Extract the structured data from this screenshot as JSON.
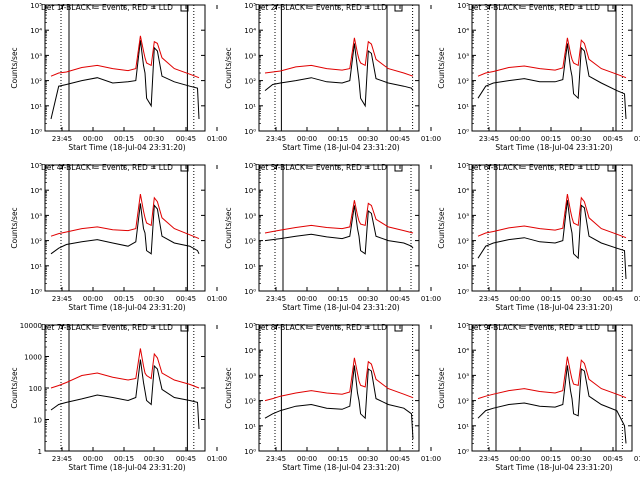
{
  "figure": {
    "background": "#ffffff",
    "event_color": "#000000",
    "lld_color": "#e00000",
    "xlabel": "Start Time (18-Jul-04 23:31:20)",
    "ylabel": "Counts/sec"
  },
  "chart_data": [
    {
      "type": "line",
      "title": "Det 1f-BLACK = Events, RED = LLD",
      "scale": "log",
      "ylim": [
        1,
        100000
      ],
      "yticks": [
        "10⁰",
        "10¹",
        "10²",
        "10³",
        "10⁴",
        "10⁵"
      ],
      "xticks": [
        "23:45",
        "00:00",
        "00:15",
        "00:30",
        "00:45",
        "01:00"
      ],
      "xlabel": "Start Time (18-Jul-04 23:31:20)",
      "ylabel": "Counts/sec",
      "series": [
        {
          "name": "Events",
          "x": [
            0,
            5,
            10,
            20,
            30,
            40,
            50,
            55,
            58,
            60,
            61,
            62,
            65,
            67,
            69,
            72,
            80,
            90,
            95,
            96
          ],
          "y": [
            3,
            60,
            70,
            100,
            130,
            80,
            90,
            100,
            4000,
            400,
            200,
            20,
            10,
            2000,
            1500,
            150,
            90,
            60,
            50,
            3
          ]
        },
        {
          "name": "LLD",
          "x": [
            0,
            5,
            10,
            20,
            30,
            40,
            50,
            55,
            58,
            60,
            61,
            62,
            65,
            67,
            69,
            72,
            80,
            90,
            96
          ],
          "y": [
            150,
            200,
            220,
            330,
            400,
            300,
            250,
            300,
            6000,
            1500,
            800,
            500,
            400,
            3500,
            3000,
            800,
            300,
            180,
            130
          ]
        }
      ],
      "markers": {
        "dotted": [
          10,
          93
        ],
        "solid": [
          15,
          89
        ]
      }
    },
    {
      "type": "line",
      "title": "Det 2f-BLACK = Events, RED = LLD",
      "scale": "log",
      "ylim": [
        1,
        100000
      ],
      "yticks": [
        "10⁰",
        "10¹",
        "10²",
        "10³",
        "10⁴",
        "10⁵"
      ],
      "xticks": [
        "23:45",
        "00:00",
        "00:15",
        "00:30",
        "00:45",
        "01:00"
      ],
      "xlabel": "Start Time (18-Jul-04 23:31:20)",
      "ylabel": "Counts/sec",
      "series": [
        {
          "name": "Events",
          "x": [
            0,
            5,
            10,
            20,
            30,
            40,
            50,
            55,
            58,
            60,
            61,
            62,
            65,
            67,
            69,
            72,
            80,
            90,
            95,
            96
          ],
          "y": [
            40,
            70,
            80,
            100,
            130,
            90,
            80,
            100,
            3000,
            300,
            100,
            20,
            10,
            1500,
            1200,
            120,
            80,
            60,
            50,
            40
          ]
        },
        {
          "name": "LLD",
          "x": [
            0,
            5,
            10,
            20,
            30,
            40,
            50,
            55,
            58,
            60,
            61,
            62,
            65,
            67,
            69,
            72,
            80,
            90,
            96
          ],
          "y": [
            200,
            220,
            240,
            350,
            400,
            300,
            260,
            300,
            5000,
            1200,
            700,
            500,
            400,
            3500,
            2800,
            700,
            300,
            200,
            150
          ]
        }
      ],
      "markers": {
        "dotted": [
          10,
          96
        ],
        "solid": [
          14,
          80
        ]
      }
    },
    {
      "type": "line",
      "title": "Det 3f-BLACK = Events, RED = LLD",
      "scale": "log",
      "ylim": [
        1,
        100000
      ],
      "yticks": [
        "10⁰",
        "10¹",
        "10²",
        "10³",
        "10⁴",
        "10⁵"
      ],
      "xticks": [
        "23:45",
        "00:00",
        "00:15",
        "00:30",
        "00:45",
        "01:00"
      ],
      "xlabel": "Start Time (18-Jul-04 23:31:20)",
      "ylabel": "Counts/sec",
      "series": [
        {
          "name": "Events",
          "x": [
            0,
            5,
            10,
            20,
            30,
            40,
            50,
            55,
            58,
            60,
            61,
            62,
            65,
            67,
            69,
            72,
            80,
            90,
            95,
            96
          ],
          "y": [
            20,
            60,
            80,
            100,
            120,
            90,
            90,
            110,
            3000,
            300,
            150,
            30,
            20,
            2000,
            1500,
            150,
            80,
            40,
            30,
            3
          ]
        },
        {
          "name": "LLD",
          "x": [
            0,
            5,
            10,
            20,
            30,
            40,
            50,
            55,
            58,
            60,
            61,
            62,
            65,
            67,
            69,
            72,
            80,
            90,
            96
          ],
          "y": [
            150,
            200,
            230,
            330,
            380,
            300,
            260,
            320,
            5000,
            1200,
            700,
            500,
            400,
            4000,
            3000,
            700,
            300,
            180,
            130
          ]
        }
      ],
      "markers": {
        "dotted": [
          10,
          94
        ],
        "solid": [
          15,
          90
        ]
      }
    },
    {
      "type": "line",
      "title": "Det 4f-BLACK = Events, RED = LLD",
      "scale": "log",
      "ylim": [
        1,
        100000
      ],
      "yticks": [
        "10⁰",
        "10¹",
        "10²",
        "10³",
        "10⁴",
        "10⁵"
      ],
      "xticks": [
        "23:45",
        "00:00",
        "00:15",
        "00:30",
        "00:45",
        "01:00"
      ],
      "xlabel": "Start Time (18-Jul-04 23:31:20)",
      "ylabel": "Counts/sec",
      "series": [
        {
          "name": "Events",
          "x": [
            0,
            5,
            10,
            20,
            30,
            40,
            50,
            55,
            58,
            60,
            61,
            62,
            65,
            67,
            69,
            72,
            80,
            90,
            95,
            96
          ],
          "y": [
            30,
            50,
            70,
            90,
            110,
            80,
            60,
            90,
            3000,
            300,
            200,
            40,
            30,
            2500,
            1800,
            150,
            80,
            60,
            40,
            30
          ]
        },
        {
          "name": "LLD",
          "x": [
            0,
            5,
            10,
            20,
            30,
            40,
            50,
            55,
            58,
            60,
            61,
            62,
            65,
            67,
            69,
            72,
            80,
            90,
            96
          ],
          "y": [
            150,
            190,
            220,
            300,
            350,
            270,
            250,
            300,
            7000,
            1500,
            800,
            500,
            400,
            5000,
            3500,
            800,
            300,
            170,
            120
          ]
        }
      ],
      "markers": {
        "dotted": [
          10,
          93
        ],
        "solid": [
          15,
          89
        ]
      }
    },
    {
      "type": "line",
      "title": "Det 5f-BLACK = Events, RED = LLD",
      "scale": "log",
      "ylim": [
        1,
        100000
      ],
      "yticks": [
        "10⁰",
        "10¹",
        "10²",
        "10³",
        "10⁴",
        "10⁵"
      ],
      "xticks": [
        "23:45",
        "00:00",
        "00:15",
        "00:30",
        "00:45",
        "01:00"
      ],
      "xlabel": "Start Time (18-Jul-04 23:31:20)",
      "ylabel": "Counts/sec",
      "series": [
        {
          "name": "Events",
          "x": [
            0,
            5,
            10,
            20,
            30,
            40,
            50,
            55,
            58,
            60,
            61,
            62,
            65,
            67,
            69,
            72,
            80,
            90,
            95,
            96
          ],
          "y": [
            100,
            110,
            120,
            150,
            180,
            140,
            120,
            150,
            2500,
            300,
            150,
            40,
            30,
            1500,
            1200,
            150,
            100,
            80,
            60,
            50
          ]
        },
        {
          "name": "LLD",
          "x": [
            0,
            5,
            10,
            20,
            30,
            40,
            50,
            55,
            58,
            60,
            61,
            62,
            65,
            67,
            69,
            72,
            80,
            90,
            96
          ],
          "y": [
            200,
            230,
            260,
            330,
            400,
            330,
            300,
            350,
            4000,
            1000,
            600,
            450,
            400,
            3000,
            2500,
            700,
            350,
            250,
            200
          ]
        }
      ],
      "markers": {
        "dotted": [
          10,
          95
        ],
        "solid": [
          15,
          80
        ]
      }
    },
    {
      "type": "line",
      "title": "Det 6f-BLACK = Events, RED = LLD",
      "scale": "log",
      "ylim": [
        1,
        100000
      ],
      "yticks": [
        "10⁰",
        "10¹",
        "10²",
        "10³",
        "10⁴",
        "10⁵"
      ],
      "xticks": [
        "23:45",
        "00:00",
        "00:15",
        "00:30",
        "00:45",
        "01:00"
      ],
      "xlabel": "Start Time (18-Jul-04 23:31:20)",
      "ylabel": "Counts/sec",
      "series": [
        {
          "name": "Events",
          "x": [
            0,
            5,
            10,
            20,
            30,
            40,
            50,
            55,
            58,
            60,
            61,
            62,
            65,
            67,
            69,
            72,
            80,
            90,
            95,
            96
          ],
          "y": [
            20,
            60,
            80,
            110,
            130,
            90,
            80,
            100,
            4000,
            400,
            200,
            30,
            20,
            2500,
            2000,
            150,
            80,
            50,
            40,
            3
          ]
        },
        {
          "name": "LLD",
          "x": [
            0,
            5,
            10,
            20,
            30,
            40,
            50,
            55,
            58,
            60,
            61,
            62,
            65,
            67,
            69,
            72,
            80,
            90,
            96
          ],
          "y": [
            150,
            200,
            230,
            320,
            380,
            300,
            260,
            310,
            7000,
            1500,
            800,
            500,
            400,
            5000,
            3500,
            800,
            300,
            180,
            130
          ]
        }
      ],
      "markers": {
        "dotted": [
          10,
          94
        ],
        "solid": [
          15,
          90
        ]
      }
    },
    {
      "type": "line",
      "title": "Det 7f-BLACK = Events, RED = LLD",
      "scale": "log",
      "ylim": [
        1,
        10000
      ],
      "yticks": [
        "1",
        "10",
        "100",
        "1000",
        "10000"
      ],
      "xticks": [
        "23:45",
        "00:00",
        "00:15",
        "00:30",
        "00:45",
        "01:00"
      ],
      "xlabel": "Start Time (18-Jul-04 23:31:20)",
      "ylabel": "Counts/sec",
      "series": [
        {
          "name": "Events",
          "x": [
            0,
            5,
            10,
            20,
            30,
            40,
            50,
            55,
            58,
            60,
            61,
            62,
            65,
            67,
            69,
            72,
            80,
            90,
            95,
            96
          ],
          "y": [
            20,
            30,
            35,
            45,
            60,
            50,
            40,
            50,
            800,
            150,
            80,
            40,
            30,
            500,
            400,
            90,
            50,
            40,
            35,
            5
          ]
        },
        {
          "name": "LLD",
          "x": [
            0,
            5,
            10,
            20,
            30,
            40,
            50,
            55,
            58,
            60,
            61,
            62,
            65,
            67,
            69,
            72,
            80,
            90,
            96
          ],
          "y": [
            100,
            120,
            150,
            250,
            300,
            220,
            180,
            200,
            1800,
            500,
            300,
            250,
            200,
            1200,
            900,
            300,
            180,
            130,
            100
          ]
        }
      ],
      "markers": {
        "dotted": [
          10,
          93
        ],
        "solid": [
          15,
          89
        ]
      }
    },
    {
      "type": "line",
      "title": "Det 8f-BLACK = Events, RED = LLD",
      "scale": "log",
      "ylim": [
        1,
        100000
      ],
      "yticks": [
        "10⁰",
        "10¹",
        "10²",
        "10³",
        "10⁴",
        "10⁵"
      ],
      "xticks": [
        "23:45",
        "00:00",
        "00:15",
        "00:30",
        "00:45",
        "01:00"
      ],
      "xlabel": "Start Time (18-Jul-04 23:31:20)",
      "ylabel": "Counts/sec",
      "series": [
        {
          "name": "Events",
          "x": [
            0,
            5,
            10,
            20,
            30,
            40,
            50,
            55,
            58,
            60,
            61,
            62,
            65,
            67,
            69,
            72,
            80,
            90,
            95,
            96
          ],
          "y": [
            20,
            30,
            40,
            60,
            70,
            50,
            45,
            60,
            2500,
            200,
            100,
            30,
            20,
            1800,
            1500,
            120,
            70,
            50,
            30,
            3
          ]
        },
        {
          "name": "LLD",
          "x": [
            0,
            5,
            10,
            20,
            30,
            40,
            50,
            55,
            58,
            60,
            61,
            62,
            65,
            67,
            69,
            72,
            80,
            90,
            96
          ],
          "y": [
            100,
            120,
            150,
            200,
            250,
            200,
            180,
            220,
            5000,
            1200,
            600,
            400,
            350,
            3500,
            2800,
            700,
            300,
            180,
            130
          ]
        }
      ],
      "markers": {
        "dotted": [
          10,
          96
        ],
        "solid": [
          14,
          80
        ]
      }
    },
    {
      "type": "line",
      "title": "Det 9f-BLACK = Events, RED = LLD",
      "scale": "log",
      "ylim": [
        1,
        100000
      ],
      "yticks": [
        "10⁰",
        "10¹",
        "10²",
        "10³",
        "10⁴",
        "10⁵"
      ],
      "xticks": [
        "23:45",
        "00:00",
        "00:15",
        "00:30",
        "00:45",
        "01:00"
      ],
      "xlabel": "Start Time (18-Jul-04 23:31:20)",
      "ylabel": "Counts/sec",
      "series": [
        {
          "name": "Events",
          "x": [
            0,
            5,
            10,
            20,
            30,
            40,
            50,
            55,
            58,
            60,
            61,
            62,
            65,
            67,
            69,
            72,
            80,
            90,
            95,
            96
          ],
          "y": [
            20,
            40,
            50,
            70,
            80,
            60,
            55,
            70,
            2500,
            250,
            120,
            30,
            25,
            1800,
            1500,
            150,
            70,
            40,
            10,
            2
          ]
        },
        {
          "name": "LLD",
          "x": [
            0,
            5,
            10,
            20,
            30,
            40,
            50,
            55,
            58,
            60,
            61,
            62,
            65,
            67,
            69,
            72,
            80,
            90,
            96
          ],
          "y": [
            120,
            150,
            180,
            250,
            300,
            230,
            200,
            250,
            5500,
            1300,
            700,
            450,
            400,
            4000,
            3000,
            700,
            300,
            180,
            130
          ]
        }
      ],
      "markers": {
        "dotted": [
          10,
          94
        ],
        "solid": [
          15,
          90
        ]
      }
    }
  ]
}
